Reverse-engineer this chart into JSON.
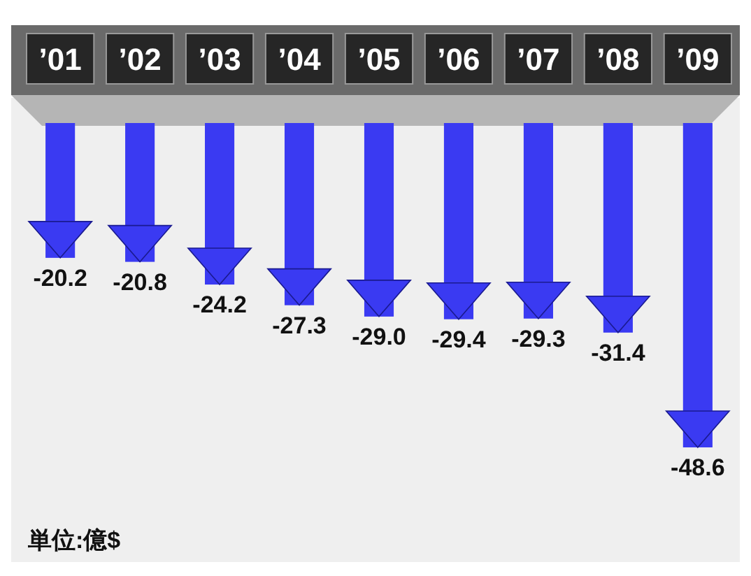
{
  "chart_data": {
    "type": "bar",
    "categories": [
      "’01",
      "’02",
      "’03",
      "’04",
      "’05",
      "’06",
      "’07",
      "’08",
      "’09"
    ],
    "values": [
      -20.2,
      -20.8,
      -24.2,
      -27.3,
      -29.0,
      -29.4,
      -29.3,
      -31.4,
      -48.6
    ],
    "color": "#3a3af2",
    "value_labels": [
      "-20.2",
      "-20.8",
      "-24.2",
      "-27.3",
      "-29.0",
      "-29.4",
      "-29.3",
      "-31.4",
      "-48.6"
    ],
    "annotations": [
      "単位:億$"
    ]
  }
}
